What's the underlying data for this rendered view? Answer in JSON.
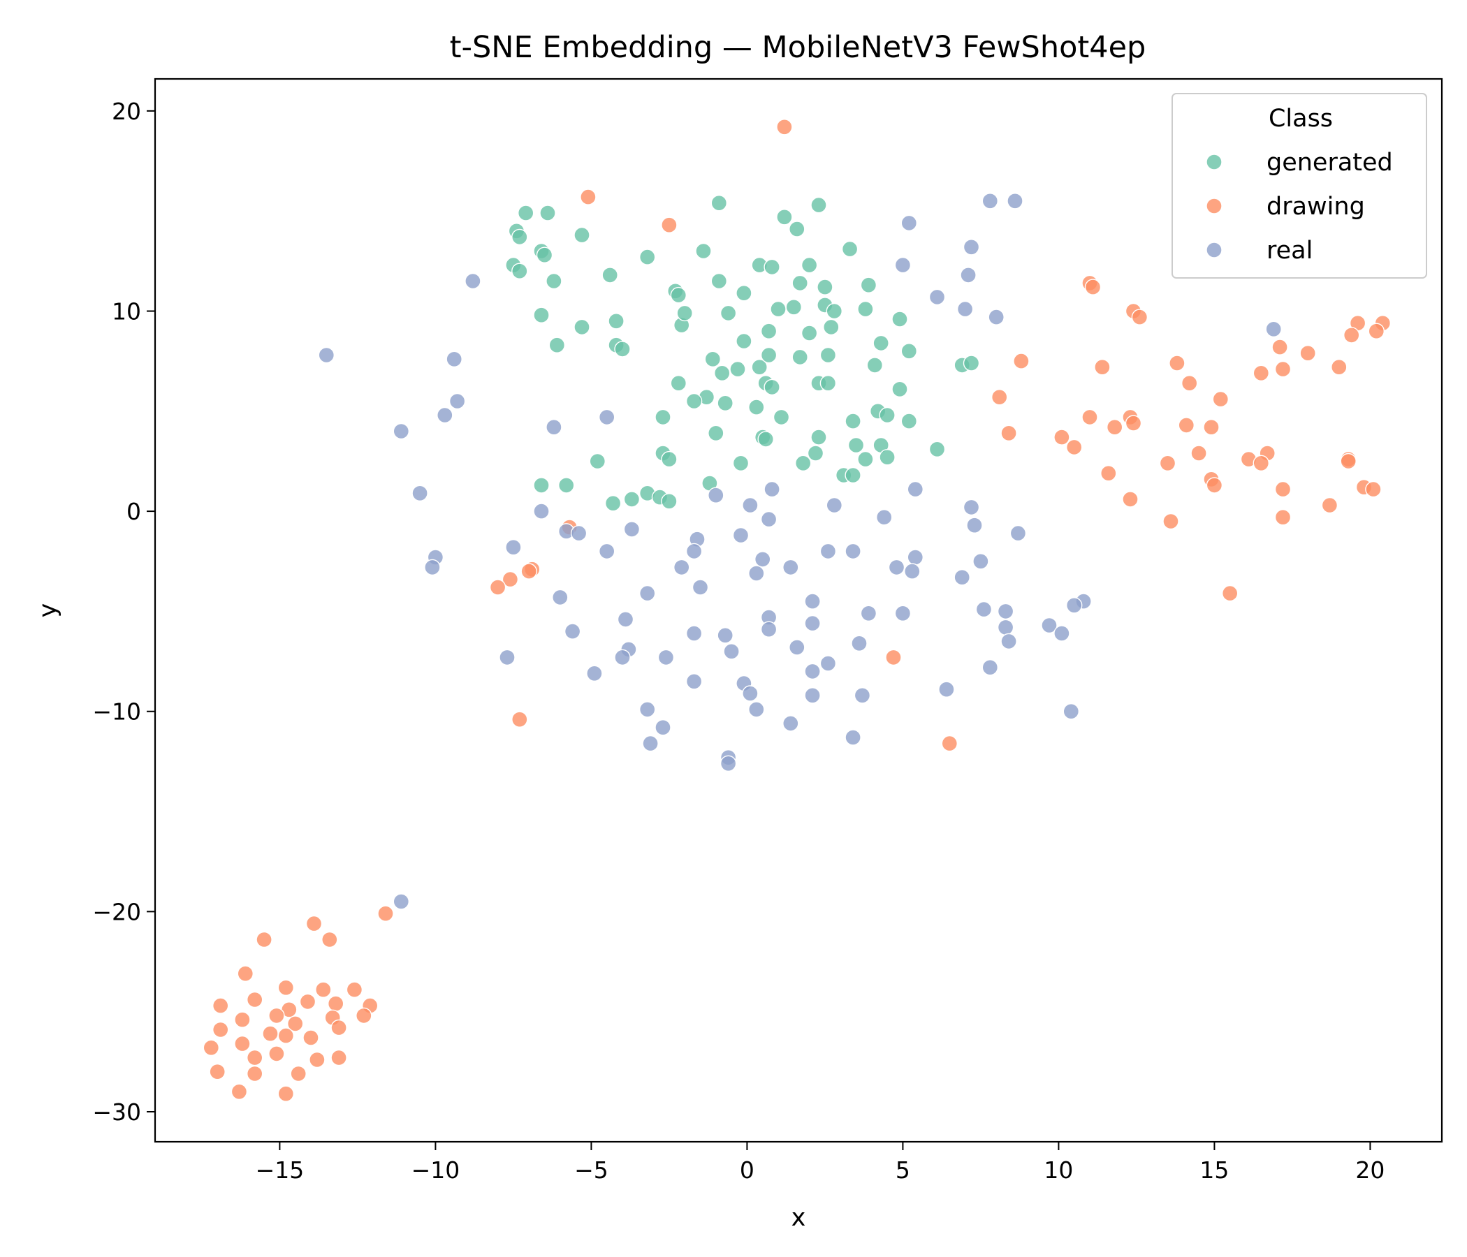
{
  "chart_data": {
    "type": "scatter",
    "title": "t-SNE Embedding — MobileNetV3 FewShot4ep",
    "xlabel": "x",
    "ylabel": "y",
    "xlim": [
      -19,
      22.3
    ],
    "ylim": [
      -31.5,
      21.6
    ],
    "xticks": [
      -15,
      -10,
      -5,
      0,
      5,
      10,
      15,
      20
    ],
    "yticks": [
      -30,
      -20,
      -10,
      0,
      10,
      20
    ],
    "grid": false,
    "legend": {
      "title": "Class",
      "position": "top-right"
    },
    "series": [
      {
        "name": "generated",
        "color": "#66c2a5",
        "points": [
          [
            -7.4,
            14.0
          ],
          [
            -7.1,
            14.9
          ],
          [
            -6.4,
            14.9
          ],
          [
            -7.3,
            13.7
          ],
          [
            -6.6,
            13.0
          ],
          [
            -6.5,
            12.8
          ],
          [
            -7.5,
            12.3
          ],
          [
            -7.3,
            12.0
          ],
          [
            -6.2,
            11.5
          ],
          [
            -5.3,
            13.8
          ],
          [
            -4.4,
            11.8
          ],
          [
            -6.6,
            9.8
          ],
          [
            -5.3,
            9.2
          ],
          [
            -6.1,
            8.3
          ],
          [
            -4.2,
            9.5
          ],
          [
            -4.2,
            8.3
          ],
          [
            -4.0,
            8.1
          ],
          [
            -3.2,
            12.7
          ],
          [
            -2.3,
            11.0
          ],
          [
            -2.2,
            10.8
          ],
          [
            -2.1,
            9.3
          ],
          [
            -2.0,
            9.9
          ],
          [
            -1.4,
            13.0
          ],
          [
            -0.9,
            15.4
          ],
          [
            -0.9,
            11.5
          ],
          [
            -0.1,
            10.9
          ],
          [
            -0.6,
            9.9
          ],
          [
            0.4,
            12.3
          ],
          [
            0.8,
            12.2
          ],
          [
            1.2,
            14.7
          ],
          [
            1.6,
            14.1
          ],
          [
            2.3,
            15.3
          ],
          [
            1.7,
            11.4
          ],
          [
            2.0,
            12.3
          ],
          [
            2.5,
            11.2
          ],
          [
            2.5,
            10.3
          ],
          [
            2.8,
            10.0
          ],
          [
            1.0,
            10.1
          ],
          [
            1.5,
            10.2
          ],
          [
            2.0,
            8.9
          ],
          [
            2.7,
            9.2
          ],
          [
            3.9,
            11.3
          ],
          [
            3.8,
            10.1
          ],
          [
            4.9,
            9.6
          ],
          [
            4.3,
            8.4
          ],
          [
            5.2,
            8.0
          ],
          [
            4.1,
            7.3
          ],
          [
            3.3,
            13.1
          ],
          [
            -1.1,
            7.6
          ],
          [
            -0.8,
            6.9
          ],
          [
            -0.3,
            7.1
          ],
          [
            -0.1,
            8.5
          ],
          [
            0.7,
            9.0
          ],
          [
            0.4,
            7.2
          ],
          [
            0.7,
            7.8
          ],
          [
            1.7,
            7.7
          ],
          [
            2.6,
            7.8
          ],
          [
            0.6,
            6.4
          ],
          [
            0.8,
            6.2
          ],
          [
            2.3,
            6.4
          ],
          [
            2.6,
            6.4
          ],
          [
            4.9,
            6.1
          ],
          [
            -2.2,
            6.4
          ],
          [
            -1.3,
            5.7
          ],
          [
            -0.7,
            5.4
          ],
          [
            0.3,
            5.2
          ],
          [
            1.1,
            4.7
          ],
          [
            -2.7,
            4.7
          ],
          [
            -1.0,
            3.9
          ],
          [
            0.5,
            3.7
          ],
          [
            0.6,
            3.6
          ],
          [
            2.3,
            3.7
          ],
          [
            3.4,
            4.5
          ],
          [
            4.2,
            5.0
          ],
          [
            4.5,
            4.8
          ],
          [
            5.2,
            4.5
          ],
          [
            3.5,
            3.3
          ],
          [
            4.3,
            3.3
          ],
          [
            2.2,
            2.9
          ],
          [
            -2.7,
            2.9
          ],
          [
            -2.5,
            2.6
          ],
          [
            -0.2,
            2.4
          ],
          [
            1.8,
            2.4
          ],
          [
            3.8,
            2.6
          ],
          [
            4.5,
            2.7
          ],
          [
            6.1,
            3.1
          ],
          [
            3.1,
            1.8
          ],
          [
            3.4,
            1.8
          ],
          [
            -4.8,
            2.5
          ],
          [
            -1.2,
            1.4
          ],
          [
            -6.6,
            1.3
          ],
          [
            -5.8,
            1.3
          ],
          [
            -3.2,
            0.9
          ],
          [
            -2.8,
            0.7
          ],
          [
            -3.7,
            0.6
          ],
          [
            -2.5,
            0.5
          ],
          [
            -4.3,
            0.4
          ],
          [
            6.9,
            7.3
          ],
          [
            7.2,
            7.4
          ],
          [
            -1.7,
            5.5
          ]
        ]
      },
      {
        "name": "drawing",
        "color": "#fc8d62",
        "points": [
          [
            1.2,
            19.2
          ],
          [
            -5.1,
            15.7
          ],
          [
            -2.5,
            14.3
          ],
          [
            11.0,
            11.4
          ],
          [
            11.1,
            11.2
          ],
          [
            12.4,
            10.0
          ],
          [
            12.6,
            9.7
          ],
          [
            19.6,
            9.4
          ],
          [
            20.4,
            9.4
          ],
          [
            20.2,
            9.0
          ],
          [
            19.4,
            8.8
          ],
          [
            17.1,
            8.2
          ],
          [
            18.0,
            7.9
          ],
          [
            8.8,
            7.5
          ],
          [
            11.4,
            7.2
          ],
          [
            13.8,
            7.4
          ],
          [
            17.2,
            7.1
          ],
          [
            19.0,
            7.2
          ],
          [
            16.5,
            6.9
          ],
          [
            14.2,
            6.4
          ],
          [
            8.1,
            5.7
          ],
          [
            15.2,
            5.6
          ],
          [
            11.0,
            4.7
          ],
          [
            12.3,
            4.7
          ],
          [
            11.8,
            4.2
          ],
          [
            12.4,
            4.4
          ],
          [
            14.1,
            4.3
          ],
          [
            14.9,
            4.2
          ],
          [
            8.4,
            3.9
          ],
          [
            10.1,
            3.7
          ],
          [
            10.5,
            3.2
          ],
          [
            14.5,
            2.9
          ],
          [
            16.7,
            2.9
          ],
          [
            16.1,
            2.6
          ],
          [
            16.5,
            2.4
          ],
          [
            19.3,
            2.6
          ],
          [
            19.3,
            2.5
          ],
          [
            13.5,
            2.4
          ],
          [
            11.6,
            1.9
          ],
          [
            14.9,
            1.6
          ],
          [
            15.0,
            1.3
          ],
          [
            17.2,
            1.1
          ],
          [
            19.8,
            1.2
          ],
          [
            20.1,
            1.1
          ],
          [
            12.3,
            0.6
          ],
          [
            18.7,
            0.3
          ],
          [
            17.2,
            -0.3
          ],
          [
            13.6,
            -0.5
          ],
          [
            15.5,
            -4.1
          ],
          [
            -5.7,
            -0.8
          ],
          [
            -6.9,
            -2.9
          ],
          [
            -7.0,
            -3.0
          ],
          [
            -7.6,
            -3.4
          ],
          [
            -8.0,
            -3.8
          ],
          [
            4.7,
            -7.3
          ],
          [
            -7.3,
            -10.4
          ],
          [
            6.5,
            -11.6
          ],
          [
            -11.6,
            -20.1
          ],
          [
            -13.9,
            -20.6
          ],
          [
            -15.5,
            -21.4
          ],
          [
            -13.4,
            -21.4
          ],
          [
            -16.1,
            -23.1
          ],
          [
            -12.6,
            -23.9
          ],
          [
            -13.6,
            -23.9
          ],
          [
            -14.8,
            -23.8
          ],
          [
            -15.8,
            -24.4
          ],
          [
            -14.7,
            -24.9
          ],
          [
            -16.9,
            -24.7
          ],
          [
            -12.1,
            -24.7
          ],
          [
            -13.2,
            -24.6
          ],
          [
            -14.1,
            -24.5
          ],
          [
            -15.1,
            -25.2
          ],
          [
            -12.3,
            -25.2
          ],
          [
            -13.3,
            -25.3
          ],
          [
            -16.2,
            -25.4
          ],
          [
            -14.5,
            -25.6
          ],
          [
            -13.1,
            -25.8
          ],
          [
            -16.9,
            -25.9
          ],
          [
            -15.3,
            -26.1
          ],
          [
            -14.8,
            -26.2
          ],
          [
            -14.0,
            -26.3
          ],
          [
            -16.2,
            -26.6
          ],
          [
            -17.2,
            -26.8
          ],
          [
            -15.1,
            -27.1
          ],
          [
            -15.8,
            -27.3
          ],
          [
            -13.8,
            -27.4
          ],
          [
            -13.1,
            -27.3
          ],
          [
            -17.0,
            -28.0
          ],
          [
            -15.8,
            -28.1
          ],
          [
            -14.4,
            -28.1
          ],
          [
            -16.3,
            -29.0
          ],
          [
            -14.8,
            -29.1
          ]
        ]
      },
      {
        "name": "real",
        "color": "#8da0cb",
        "points": [
          [
            7.8,
            15.5
          ],
          [
            8.6,
            15.5
          ],
          [
            5.2,
            14.4
          ],
          [
            7.2,
            13.2
          ],
          [
            5.0,
            12.3
          ],
          [
            7.1,
            11.8
          ],
          [
            -8.8,
            11.5
          ],
          [
            6.1,
            10.7
          ],
          [
            7.0,
            10.1
          ],
          [
            8.0,
            9.7
          ],
          [
            16.9,
            9.1
          ],
          [
            -13.5,
            7.8
          ],
          [
            -9.4,
            7.6
          ],
          [
            -9.3,
            5.5
          ],
          [
            -9.7,
            4.8
          ],
          [
            -11.1,
            4.0
          ],
          [
            -4.5,
            4.7
          ],
          [
            -6.2,
            4.2
          ],
          [
            -10.5,
            0.9
          ],
          [
            5.4,
            1.1
          ],
          [
            -1.0,
            0.8
          ],
          [
            0.8,
            1.1
          ],
          [
            2.8,
            0.3
          ],
          [
            7.2,
            0.2
          ],
          [
            0.1,
            0.3
          ],
          [
            -6.6,
            0.0
          ],
          [
            0.7,
            -0.4
          ],
          [
            4.4,
            -0.3
          ],
          [
            -3.7,
            -0.9
          ],
          [
            7.3,
            -0.7
          ],
          [
            8.7,
            -1.1
          ],
          [
            -5.8,
            -1.0
          ],
          [
            -5.4,
            -1.1
          ],
          [
            -0.2,
            -1.2
          ],
          [
            -1.6,
            -1.4
          ],
          [
            -7.5,
            -1.8
          ],
          [
            -10.0,
            -2.3
          ],
          [
            -1.7,
            -2.0
          ],
          [
            -4.5,
            -2.0
          ],
          [
            2.6,
            -2.0
          ],
          [
            3.4,
            -2.0
          ],
          [
            5.4,
            -2.3
          ],
          [
            0.5,
            -2.4
          ],
          [
            7.5,
            -2.5
          ],
          [
            -10.1,
            -2.8
          ],
          [
            -2.1,
            -2.8
          ],
          [
            0.3,
            -3.1
          ],
          [
            1.4,
            -2.8
          ],
          [
            4.8,
            -2.8
          ],
          [
            5.3,
            -3.0
          ],
          [
            6.9,
            -3.3
          ],
          [
            -1.5,
            -3.8
          ],
          [
            -3.2,
            -4.1
          ],
          [
            -6.0,
            -4.3
          ],
          [
            2.1,
            -4.5
          ],
          [
            10.8,
            -4.5
          ],
          [
            10.5,
            -4.7
          ],
          [
            7.6,
            -4.9
          ],
          [
            8.3,
            -5.0
          ],
          [
            3.9,
            -5.1
          ],
          [
            5.0,
            -5.1
          ],
          [
            0.7,
            -5.3
          ],
          [
            -3.9,
            -5.4
          ],
          [
            2.1,
            -5.6
          ],
          [
            9.7,
            -5.7
          ],
          [
            0.7,
            -5.9
          ],
          [
            8.3,
            -5.8
          ],
          [
            -5.6,
            -6.0
          ],
          [
            -1.7,
            -6.1
          ],
          [
            -0.7,
            -6.2
          ],
          [
            10.1,
            -6.1
          ],
          [
            3.6,
            -6.6
          ],
          [
            8.4,
            -6.5
          ],
          [
            1.6,
            -6.8
          ],
          [
            -3.8,
            -6.9
          ],
          [
            -0.5,
            -7.0
          ],
          [
            -4.0,
            -7.3
          ],
          [
            -2.6,
            -7.3
          ],
          [
            -7.7,
            -7.3
          ],
          [
            2.6,
            -7.6
          ],
          [
            7.8,
            -7.8
          ],
          [
            -4.9,
            -8.1
          ],
          [
            2.1,
            -8.0
          ],
          [
            -1.7,
            -8.5
          ],
          [
            -0.1,
            -8.6
          ],
          [
            0.1,
            -9.1
          ],
          [
            2.1,
            -9.2
          ],
          [
            3.7,
            -9.2
          ],
          [
            6.4,
            -8.9
          ],
          [
            -3.2,
            -9.9
          ],
          [
            0.3,
            -9.9
          ],
          [
            10.4,
            -10.0
          ],
          [
            1.4,
            -10.6
          ],
          [
            -2.7,
            -10.8
          ],
          [
            -3.1,
            -11.6
          ],
          [
            3.4,
            -11.3
          ],
          [
            -0.6,
            -12.3
          ],
          [
            -0.6,
            -12.6
          ],
          [
            -11.1,
            -19.5
          ]
        ]
      }
    ]
  }
}
